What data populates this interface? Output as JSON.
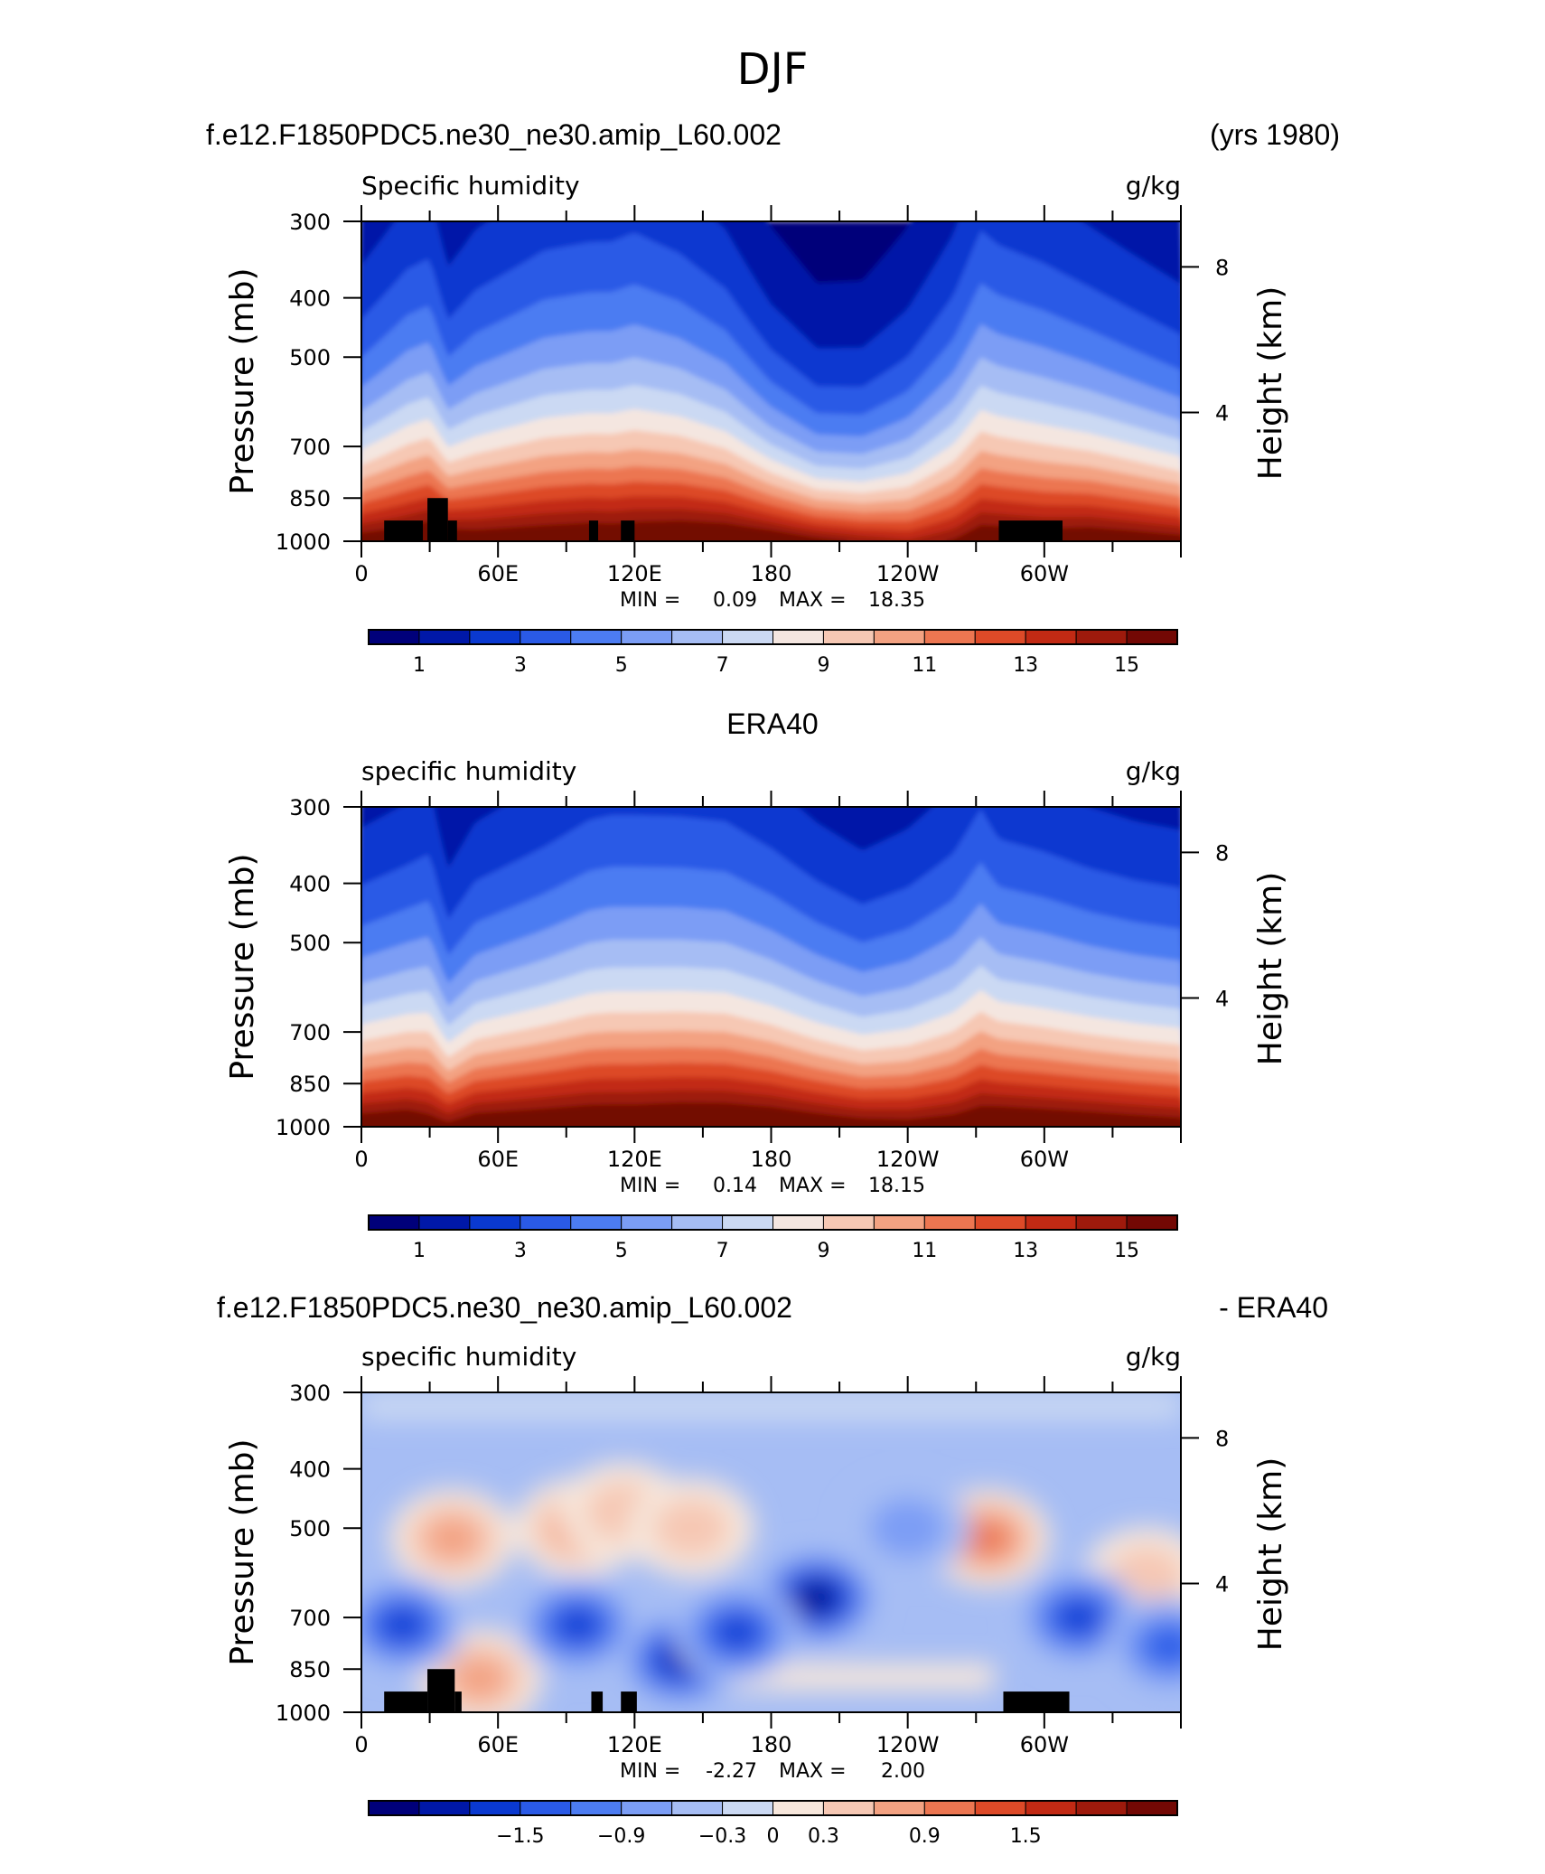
{
  "figure": {
    "title": "DJF"
  },
  "colors": {
    "abs_palette": [
      "#00007a",
      "#0018a8",
      "#0a39d0",
      "#2a5ae6",
      "#4c7cf2",
      "#7b9df5",
      "#a6bdf4",
      "#cbd9f3",
      "#f4e6e0",
      "#f6c8b4",
      "#f3a282",
      "#ec7651",
      "#dd4a28",
      "#c22a14",
      "#9e1a0c",
      "#730804"
    ],
    "diff_palette": [
      "#00007a",
      "#0018a8",
      "#0a39d0",
      "#2a5ae6",
      "#4c7cf2",
      "#7b9df5",
      "#a6bdf4",
      "#cbd9f3",
      "#f7e7dc",
      "#f6c8b4",
      "#f3a282",
      "#ec7651",
      "#dd4a28",
      "#c22a14",
      "#9e1a0c",
      "#730804"
    ]
  },
  "x_tick_labels": [
    "0",
    "60E",
    "120E",
    "180",
    "120W",
    "60W"
  ],
  "pressure_tick_labels": [
    "300",
    "400",
    "500",
    "700",
    "850",
    "1000"
  ],
  "height_tick_labels": [
    "8",
    "4"
  ],
  "left_axis_label": "Pressure (mb)",
  "right_axis_label": "Height (km)",
  "panels": [
    {
      "left_title": "f.e12.F1850PDC5.ne30_ne30.amip_L60.002",
      "right_title": "(yrs 1980)",
      "center_title": "",
      "field_left": "Specific humidity",
      "field_right": "g/kg",
      "min_label": "MIN =",
      "min_value": "0.09",
      "max_label": "MAX =",
      "max_value": "18.35",
      "colorbar_labels": [
        "1",
        "3",
        "5",
        "7",
        "9",
        "11",
        "13",
        "15"
      ]
    },
    {
      "left_title": "",
      "right_title": "",
      "center_title": "ERA40",
      "field_left": "specific humidity",
      "field_right": "g/kg",
      "min_label": "MIN =",
      "min_value": "0.14",
      "max_label": "MAX =",
      "max_value": "18.15",
      "colorbar_labels": [
        "1",
        "3",
        "5",
        "7",
        "9",
        "11",
        "13",
        "15"
      ]
    },
    {
      "left_title": "f.e12.F1850PDC5.ne30_ne30.amip_L60.002",
      "right_title": "- ERA40",
      "center_title": "",
      "field_left": "specific humidity",
      "field_right": "g/kg",
      "min_label": "MIN =",
      "min_value": "-2.27",
      "max_label": "MAX =",
      "max_value": "2.00",
      "colorbar_labels": [
        "-1.5",
        "-0.9",
        "-0.3",
        "0",
        "0.3",
        "0.9",
        "1.5"
      ]
    }
  ],
  "chart_data": [
    {
      "type": "heatmap",
      "title": "f.e12.F1850PDC5.ne30_ne30.amip_L60.002",
      "subtitle": "Specific humidity",
      "units": "g/kg",
      "xlabel": "",
      "ylabel": "Pressure (mb)",
      "ylabel_right": "Height (km)",
      "xlim": [
        0,
        360
      ],
      "ylim": [
        1000,
        300
      ],
      "y_scale": "log pressure",
      "x_ticks": [
        0,
        60,
        120,
        180,
        240,
        300
      ],
      "y_ticks": [
        300,
        400,
        500,
        700,
        850,
        1000
      ],
      "colorbar_levels": [
        1,
        2,
        3,
        4,
        5,
        6,
        7,
        8,
        9,
        10,
        11,
        12,
        13,
        14,
        15
      ],
      "min": 0.09,
      "max": 18.35,
      "x": [
        0,
        20,
        30,
        38,
        50,
        80,
        100,
        110,
        120,
        140,
        160,
        180,
        200,
        220,
        240,
        260,
        272,
        280,
        300,
        320,
        340,
        360
      ],
      "surface_q": [
        16,
        16.5,
        17,
        16.5,
        16.2,
        16.5,
        16.7,
        16.6,
        16.7,
        17,
        17,
        16.6,
        15.6,
        14.8,
        14.2,
        15.2,
        16.4,
        16.4,
        16.2,
        16.5,
        16.2,
        15.8
      ],
      "q_500mb": [
        4.0,
        5.2,
        5.5,
        4.0,
        4.7,
        5.6,
        5.8,
        5.8,
        6.0,
        5.6,
        4.8,
        3.2,
        2.2,
        2.2,
        3.0,
        4.5,
        6.0,
        5.7,
        5.3,
        4.8,
        4.2,
        3.6
      ],
      "topography_blocks": [
        {
          "lon_start": 10,
          "lon_end": 27,
          "top_mb": 925
        },
        {
          "lon_start": 29,
          "lon_end": 38,
          "top_mb": 850
        },
        {
          "lon_start": 38,
          "lon_end": 42,
          "top_mb": 925
        },
        {
          "lon_start": 100,
          "lon_end": 104,
          "top_mb": 925
        },
        {
          "lon_start": 114,
          "lon_end": 120,
          "top_mb": 925
        },
        {
          "lon_start": 280,
          "lon_end": 308,
          "top_mb": 925
        }
      ]
    },
    {
      "type": "heatmap",
      "title": "ERA40",
      "subtitle": "specific humidity",
      "units": "g/kg",
      "xlabel": "",
      "ylabel": "Pressure (mb)",
      "ylabel_right": "Height (km)",
      "xlim": [
        0,
        360
      ],
      "ylim": [
        1000,
        300
      ],
      "y_scale": "log pressure",
      "x_ticks": [
        0,
        60,
        120,
        180,
        240,
        300
      ],
      "y_ticks": [
        300,
        400,
        500,
        700,
        850,
        1000
      ],
      "colorbar_levels": [
        1,
        2,
        3,
        4,
        5,
        6,
        7,
        8,
        9,
        10,
        11,
        12,
        13,
        14,
        15
      ],
      "min": 0.14,
      "max": 18.15,
      "x": [
        0,
        20,
        30,
        38,
        50,
        80,
        100,
        110,
        120,
        140,
        160,
        180,
        200,
        220,
        240,
        260,
        272,
        280,
        300,
        320,
        340,
        360
      ],
      "surface_q": [
        16.5,
        16.8,
        16.2,
        15.6,
        16.5,
        16.8,
        17,
        17,
        17,
        17.2,
        17.2,
        17,
        16.5,
        16,
        15.8,
        16.2,
        16.8,
        17,
        16.8,
        16.6,
        16.3,
        16
      ],
      "q_500mb": [
        4.5,
        5.0,
        5.2,
        3.6,
        4.6,
        5.4,
        6.0,
        6.1,
        6.1,
        6.1,
        6.0,
        5.4,
        4.6,
        4.0,
        4.4,
        5.2,
        6.2,
        5.6,
        5.3,
        4.9,
        4.6,
        4.4
      ],
      "topography_blocks": []
    },
    {
      "type": "heatmap",
      "title": "f.e12.F1850PDC5.ne30_ne30.amip_L60.002 - ERA40",
      "subtitle": "specific humidity",
      "units": "g/kg",
      "xlabel": "",
      "ylabel": "Pressure (mb)",
      "ylabel_right": "Height (km)",
      "xlim": [
        0,
        360
      ],
      "ylim": [
        1000,
        300
      ],
      "y_scale": "log pressure",
      "x_ticks": [
        0,
        60,
        120,
        180,
        240,
        300
      ],
      "y_ticks": [
        300,
        400,
        500,
        700,
        850,
        1000
      ],
      "colorbar_levels": [
        -2.1,
        -1.8,
        -1.5,
        -1.2,
        -0.9,
        -0.6,
        -0.3,
        0,
        0.3,
        0.6,
        0.9,
        1.2,
        1.5,
        1.8,
        2.1
      ],
      "min": -2.27,
      "max": 2.0,
      "anomalies": [
        {
          "lon": 40,
          "p_mb": 520,
          "value": 1.0
        },
        {
          "lon": 95,
          "p_mb": 500,
          "value": 0.8
        },
        {
          "lon": 115,
          "p_mb": 470,
          "value": 0.6
        },
        {
          "lon": 145,
          "p_mb": 500,
          "value": 0.7
        },
        {
          "lon": 275,
          "p_mb": 520,
          "value": 1.1
        },
        {
          "lon": 345,
          "p_mb": 600,
          "value": 0.5
        },
        {
          "lon": 52,
          "p_mb": 880,
          "value": 1.0
        },
        {
          "lon": 200,
          "p_mb": 650,
          "value": -2.1
        },
        {
          "lon": 140,
          "p_mb": 820,
          "value": -1.9
        },
        {
          "lon": 95,
          "p_mb": 720,
          "value": -1.4
        },
        {
          "lon": 165,
          "p_mb": 740,
          "value": -1.5
        },
        {
          "lon": 315,
          "p_mb": 700,
          "value": -1.6
        },
        {
          "lon": 18,
          "p_mb": 720,
          "value": -1.5
        },
        {
          "lon": 355,
          "p_mb": 780,
          "value": -1.2
        },
        {
          "lon": 240,
          "p_mb": 500,
          "value": -0.5
        }
      ],
      "topography_blocks": [
        {
          "lon_start": 10,
          "lon_end": 29,
          "top_mb": 925
        },
        {
          "lon_start": 29,
          "lon_end": 41,
          "top_mb": 850
        },
        {
          "lon_start": 41,
          "lon_end": 44,
          "top_mb": 925
        },
        {
          "lon_start": 101,
          "lon_end": 106,
          "top_mb": 925
        },
        {
          "lon_start": 114,
          "lon_end": 121,
          "top_mb": 925
        },
        {
          "lon_start": 282,
          "lon_end": 311,
          "top_mb": 925
        }
      ]
    }
  ]
}
